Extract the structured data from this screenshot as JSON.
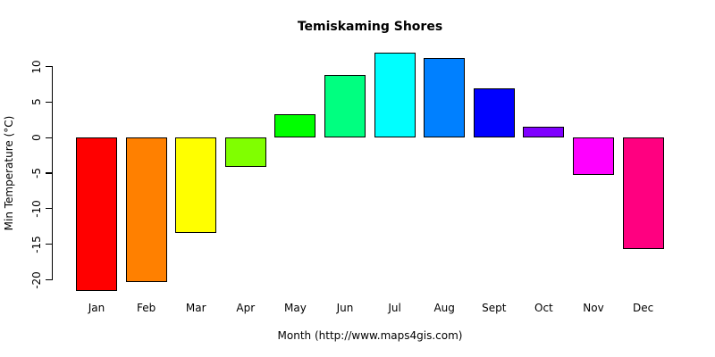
{
  "chart_data": {
    "type": "bar",
    "title": "Temiskaming Shores",
    "xlabel": "Month (http://www.maps4gis.com)",
    "ylabel": "Min Temperature (°C)",
    "categories": [
      "Jan",
      "Feb",
      "Mar",
      "Apr",
      "May",
      "Jun",
      "Jul",
      "Aug",
      "Sept",
      "Oct",
      "Nov",
      "Dec"
    ],
    "values": [
      -21.6,
      -20.3,
      -13.4,
      -4.1,
      3.3,
      8.8,
      12,
      11.2,
      6.9,
      1.5,
      -5.3,
      -15.7
    ],
    "bar_colors": [
      "#FF0000",
      "#FF8000",
      "#FFFF00",
      "#80FF00",
      "#00FF00",
      "#00FF80",
      "#00FFFF",
      "#0080FF",
      "#0000FF",
      "#8000FF",
      "#FF00FF",
      "#FF0080"
    ],
    "bar_border_color": "#000000",
    "axis_color": "#000000",
    "text_color": "#000000",
    "yticks": [
      10,
      5,
      0,
      -5,
      -10,
      -15,
      -20
    ],
    "ylim": [
      -20,
      10
    ],
    "grid": false,
    "legend": false,
    "background": "#ffffff"
  }
}
